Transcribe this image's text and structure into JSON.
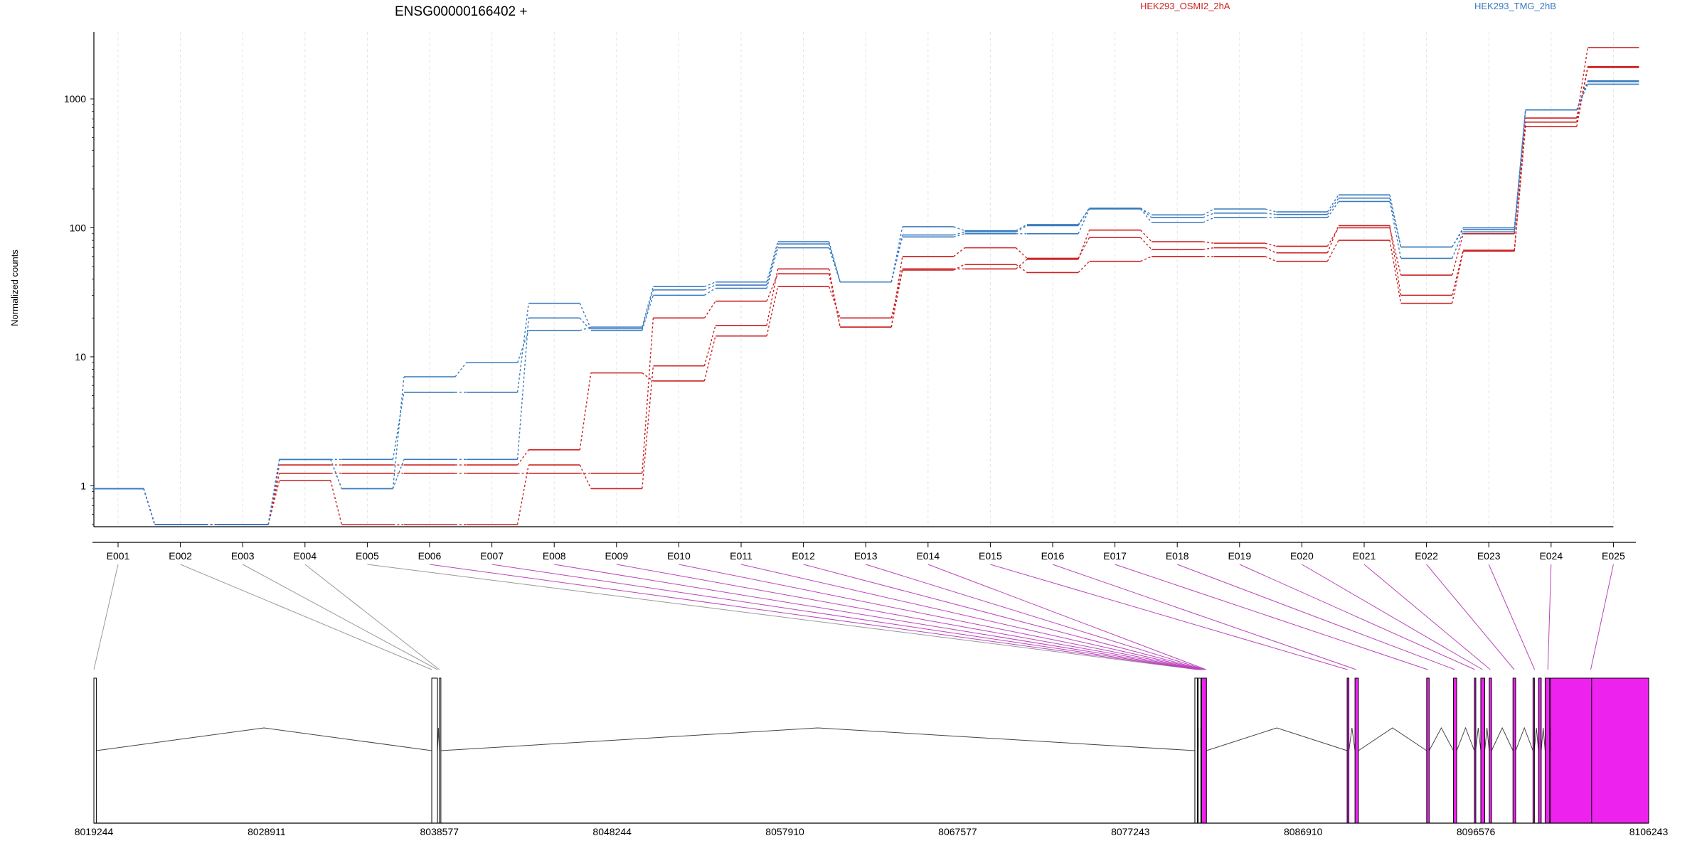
{
  "chart_data": {
    "type": "line",
    "title": "ENSG00000166402 +",
    "ylabel": "Normalized counts",
    "yscale": "log",
    "ylim": [
      0.5,
      3300
    ],
    "yticks": [
      1,
      10,
      100,
      1000
    ],
    "grid": true,
    "legend_position": "top",
    "categories": [
      "E001",
      "E002",
      "E003",
      "E004",
      "E005",
      "E006",
      "E007",
      "E008",
      "E009",
      "E010",
      "E011",
      "E012",
      "E013",
      "E014",
      "E015",
      "E016",
      "E017",
      "E018",
      "E019",
      "E020",
      "E021",
      "E022",
      "E023",
      "E024",
      "E025"
    ],
    "groups": [
      {
        "name": "HEK293_OSMI2_2hA",
        "color": "#cc2222"
      },
      {
        "name": "HEK293_TMG_2hB",
        "color": "#3a7bbf"
      }
    ],
    "series": [
      {
        "group": 0,
        "values": [
          0.95,
          0.5,
          0.5,
          1.25,
          1.25,
          1.25,
          1.25,
          1.25,
          1.25,
          20,
          27,
          44,
          17,
          47,
          52,
          45,
          55,
          60,
          60,
          55,
          80,
          26,
          66,
          610,
          1750
        ]
      },
      {
        "group": 0,
        "values": [
          0.95,
          0.5,
          0.5,
          1.1,
          0.5,
          0.5,
          0.5,
          1.45,
          0.95,
          8.5,
          17.5,
          48,
          17,
          60,
          70,
          58,
          84,
          68,
          70,
          64,
          104,
          30,
          67,
          660,
          1780
        ]
      },
      {
        "group": 0,
        "values": [
          0.95,
          0.5,
          0.5,
          1.45,
          1.45,
          1.45,
          1.45,
          1.9,
          7.5,
          6.5,
          14.5,
          35,
          20,
          48,
          48,
          57,
          96,
          78,
          76,
          72,
          100,
          43,
          90,
          710,
          2500
        ]
      },
      {
        "group": 1,
        "values": [
          0.95,
          0.5,
          0.5,
          1.6,
          0.95,
          1.6,
          1.6,
          20,
          16,
          30,
          34,
          70,
          38,
          85,
          90,
          90,
          140,
          110,
          120,
          120,
          160,
          58,
          93,
          820,
          1300
        ]
      },
      {
        "group": 1,
        "values": [
          0.95,
          0.5,
          0.5,
          1.6,
          1.6,
          5.3,
          5.3,
          26,
          16.5,
          33,
          36,
          75,
          38,
          88,
          93,
          104,
          142,
          120,
          130,
          127,
          170,
          71,
          97,
          820,
          1360
        ]
      },
      {
        "group": 1,
        "values": [
          0.95,
          0.5,
          0.5,
          1.6,
          0.95,
          7,
          9,
          16,
          17,
          35,
          38,
          78,
          38,
          102,
          95,
          106,
          142,
          126,
          140,
          133,
          180,
          71,
          100,
          820,
          1380
        ]
      }
    ],
    "genome_axis": {
      "range": [
        8019244,
        8106243
      ],
      "tick_labels": [
        "8019244",
        "8028911",
        "8038577",
        "8048244",
        "8057910",
        "8067577",
        "8077243",
        "8086910",
        "8096576",
        "8106243"
      ]
    },
    "exon_track": {
      "exons": [
        {
          "start": 8019244,
          "end": 8019380,
          "highlight": false
        },
        {
          "start": 8038150,
          "end": 8038470,
          "highlight": false
        },
        {
          "start": 8038577,
          "end": 8038660,
          "highlight": false
        },
        {
          "start": 8080850,
          "end": 8080990,
          "highlight": false
        },
        {
          "start": 8081040,
          "end": 8081180,
          "highlight": false
        },
        {
          "start": 8081230,
          "end": 8081500,
          "highlight": true
        },
        {
          "start": 8089370,
          "end": 8089470,
          "highlight": true
        },
        {
          "start": 8089810,
          "end": 8090000,
          "highlight": true
        },
        {
          "start": 8093820,
          "end": 8093960,
          "highlight": true
        },
        {
          "start": 8095320,
          "end": 8095500,
          "highlight": true
        },
        {
          "start": 8096490,
          "end": 8096560,
          "highlight": true
        },
        {
          "start": 8096850,
          "end": 8097070,
          "highlight": true
        },
        {
          "start": 8097320,
          "end": 8097450,
          "highlight": true
        },
        {
          "start": 8098650,
          "end": 8098800,
          "highlight": true
        },
        {
          "start": 8099770,
          "end": 8099840,
          "highlight": true
        },
        {
          "start": 8100080,
          "end": 8100230,
          "highlight": true
        },
        {
          "start": 8100450,
          "end": 8100700,
          "highlight": true
        },
        {
          "start": 8100740,
          "end": 8106243,
          "highlight": true
        }
      ],
      "highlight_from_exon": "E006",
      "colors": {
        "exon_highlight": "#ee22ee",
        "link_normal": "#999999",
        "link_highlight": "#bb44bb"
      }
    }
  }
}
